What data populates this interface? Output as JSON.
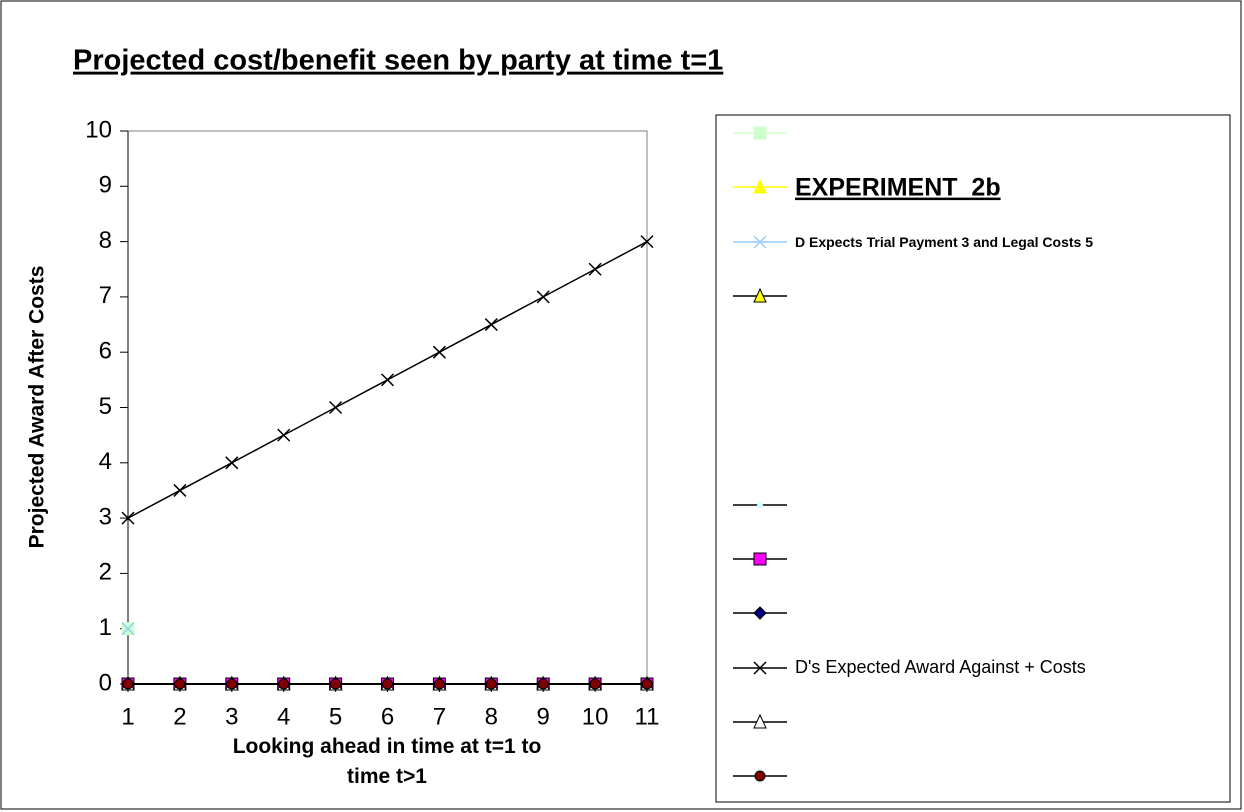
{
  "chart_data": {
    "type": "line",
    "title": "Projected cost/benefit seen by party at time t=1",
    "x_label": "Looking ahead in time at t=1 to time t>1",
    "y_label": "Projected Award After Costs",
    "categories": [
      "1",
      "2",
      "3",
      "4",
      "5",
      "6",
      "7",
      "8",
      "9",
      "10",
      "11"
    ],
    "ylim": [
      0,
      10
    ],
    "yticks": [
      0,
      1,
      2,
      3,
      4,
      5,
      6,
      7,
      8,
      9,
      10
    ],
    "series": [
      {
        "color": "#ccffcc",
        "marker": "square",
        "marker_fill": "#ccffcc",
        "values": [
          1,
          null,
          null,
          null,
          null,
          null,
          null,
          null,
          null,
          null,
          null
        ]
      },
      {
        "name": "EXPERIMENT  2b",
        "color": "#ffff00",
        "marker": "triangle",
        "marker_fill": "#ffff00",
        "values": [
          0,
          0,
          0,
          0,
          0,
          0,
          0,
          0,
          0,
          0,
          0
        ]
      },
      {
        "name": "D Expects Trial Payment 3 and Legal Costs 5",
        "color": "#99ccff",
        "marker": "x",
        "marker_fill": "#99ccff",
        "values": [
          1,
          null,
          null,
          null,
          null,
          null,
          null,
          null,
          null,
          null,
          null
        ]
      },
      {
        "color": "#000000",
        "marker": "triangle",
        "marker_fill": "#ffff00",
        "values": [
          0,
          0,
          0,
          0,
          0,
          0,
          0,
          0,
          0,
          0,
          0
        ]
      },
      {
        "color": "#000000",
        "marker": "dot",
        "marker_fill": "#ccffff",
        "values": [
          0,
          0,
          0,
          0,
          0,
          0,
          0,
          0,
          0,
          0,
          0
        ]
      },
      {
        "color": "#000000",
        "marker": "square",
        "marker_fill": "#ff00ff",
        "values": [
          0,
          0,
          0,
          0,
          0,
          0,
          0,
          0,
          0,
          0,
          0
        ]
      },
      {
        "color": "#000000",
        "marker": "diamond",
        "marker_fill": "#000080",
        "values": [
          0,
          0,
          0,
          0,
          0,
          0,
          0,
          0,
          0,
          0,
          0
        ]
      },
      {
        "name": "D's Expected Award Against + Costs",
        "color": "#000000",
        "marker": "x",
        "marker_fill": "#000000",
        "values": [
          3,
          3.5,
          4,
          4.5,
          5,
          5.5,
          6,
          6.5,
          7,
          7.5,
          8
        ]
      },
      {
        "color": "#000000",
        "marker": "triangle",
        "marker_fill": "#ffffff",
        "values": [
          0,
          0,
          0,
          0,
          0,
          0,
          0,
          0,
          0,
          0,
          0
        ]
      },
      {
        "color": "#000000",
        "marker": "circle",
        "marker_fill": "#800000",
        "values": [
          0,
          0,
          0,
          0,
          0,
          0,
          0,
          0,
          0,
          0,
          0
        ]
      }
    ]
  }
}
